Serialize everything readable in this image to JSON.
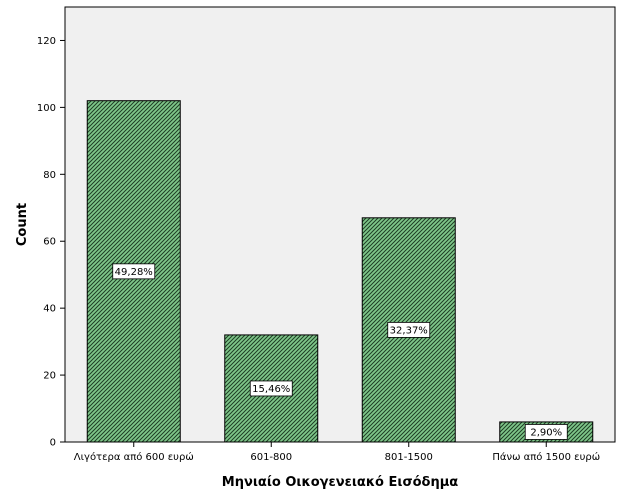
{
  "chart_data": {
    "type": "bar",
    "categories": [
      "Λιγότερα από 600 ευρώ",
      "601-800",
      "801-1500",
      "Πάνω από 1500 ευρώ"
    ],
    "values": [
      102,
      32,
      67,
      6
    ],
    "data_labels": [
      "49,28%",
      "15,46%",
      "32,37%",
      "2,90%"
    ],
    "xlabel": "Μηνιαίο Οικογενειακό Εισόδημα",
    "ylabel": "Count",
    "ylim": [
      0,
      130
    ],
    "yticks": [
      0,
      20,
      40,
      60,
      80,
      100,
      120
    ],
    "grid": false,
    "colors": {
      "plot_background": "#f0f0f0",
      "bar_fill": "#7fc78a",
      "bar_hatch": "#1e3d24",
      "bar_border": "#000000",
      "label_background": "#ffffff"
    }
  }
}
